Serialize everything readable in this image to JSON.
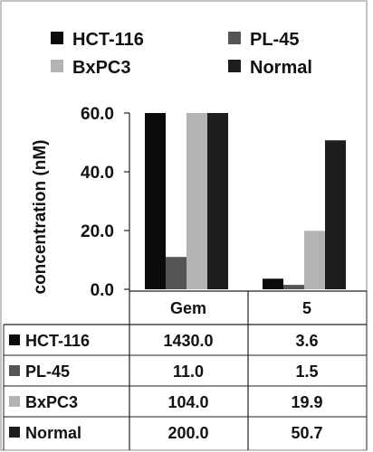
{
  "chart_data": {
    "type": "bar",
    "categories": [
      "Gem",
      "5"
    ],
    "series": [
      {
        "name": "HCT-116",
        "values": [
          60.0,
          3.6
        ],
        "color": "#0b0b0b"
      },
      {
        "name": "PL-45",
        "values": [
          11.0,
          1.5
        ],
        "color": "#555555"
      },
      {
        "name": "BxPC3",
        "values": [
          60.0,
          19.9
        ],
        "color": "#b3b3b3"
      },
      {
        "name": "Normal",
        "values": [
          60.0,
          50.7
        ],
        "color": "#1e1e1e"
      }
    ],
    "ylabel": "concentration (nM)",
    "ylim": [
      0,
      60
    ],
    "yticks": [
      "0.0",
      "20.0",
      "40.0",
      "60.0"
    ],
    "table": {
      "rows": [
        {
          "label": "HCT-116",
          "values": [
            "1430.0",
            "3.6"
          ]
        },
        {
          "label": "PL-45",
          "values": [
            "11.0",
            "1.5"
          ]
        },
        {
          "label": "BxPC3",
          "values": [
            "104.0",
            "19.9"
          ]
        },
        {
          "label": "Normal",
          "values": [
            "200.0",
            "50.7"
          ]
        }
      ]
    },
    "legend_position": "top",
    "grid": false
  }
}
